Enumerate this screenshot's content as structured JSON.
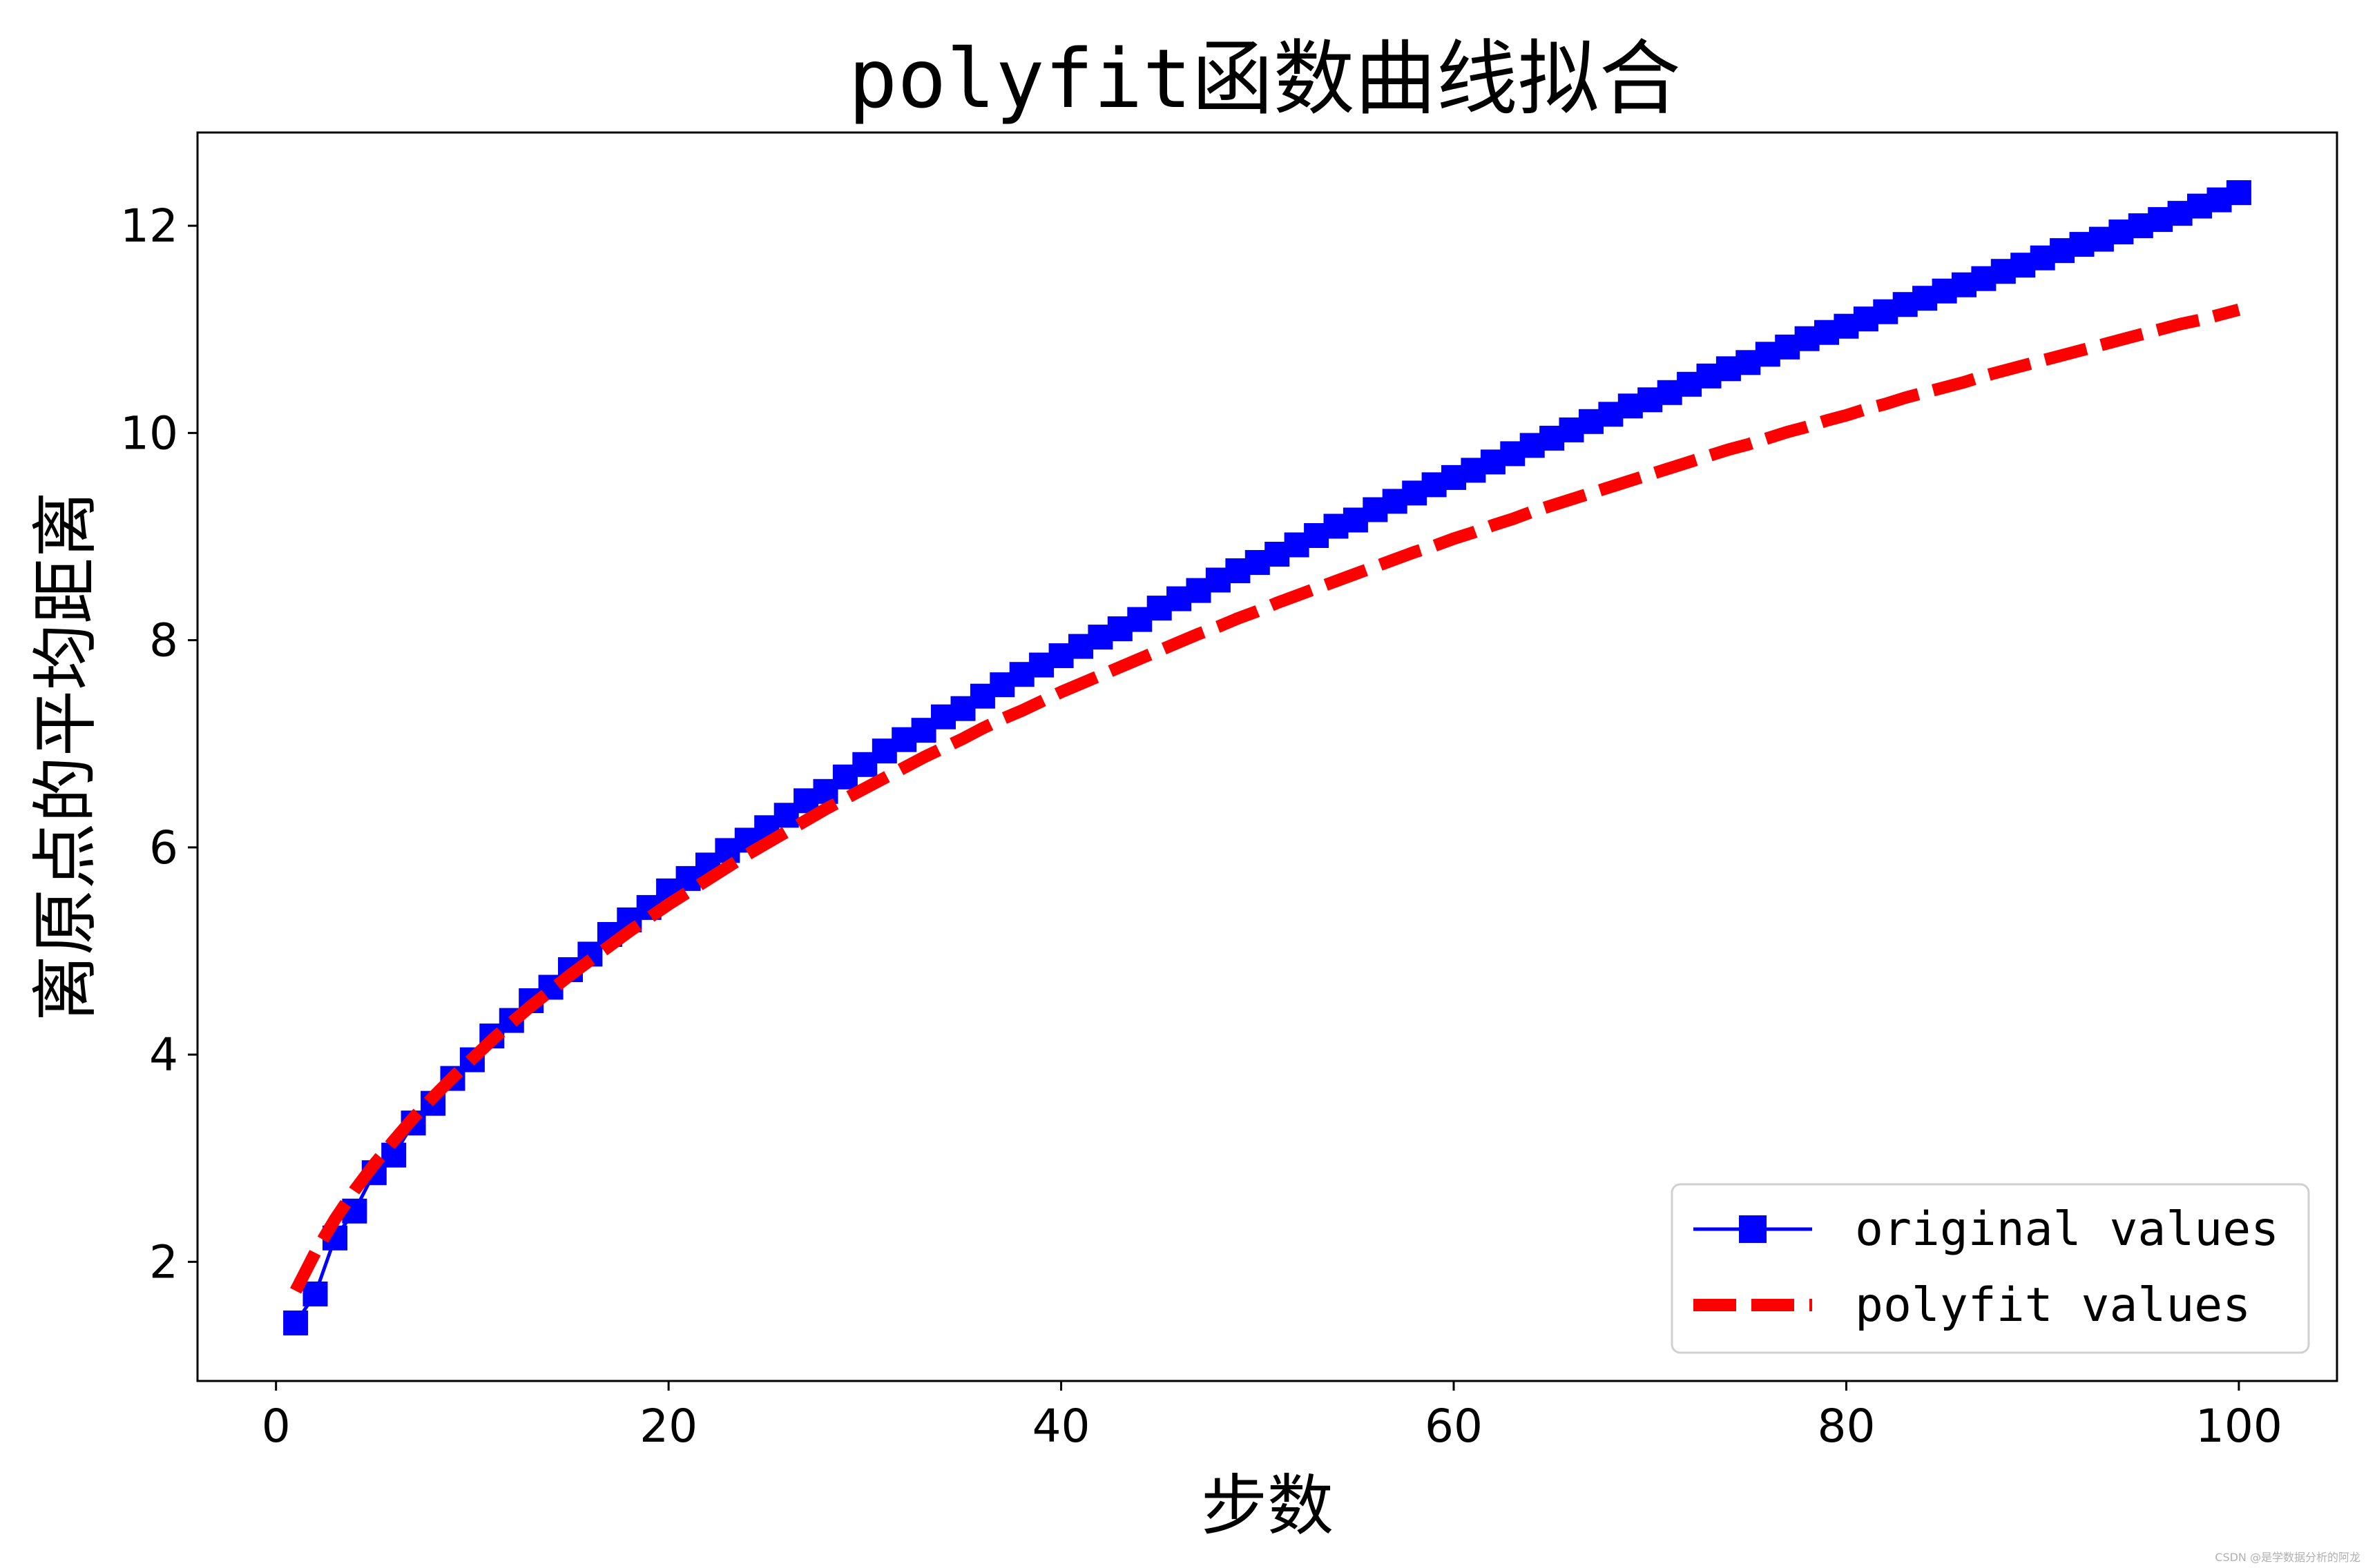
{
  "chart_data": {
    "type": "line",
    "title": "polyfit函数曲线拟合",
    "xlabel": "步数",
    "ylabel": "离原点的平均距离",
    "xlim": [
      -4,
      105
    ],
    "ylim": [
      0.85,
      12.9
    ],
    "xticks": [
      0,
      20,
      40,
      60,
      80,
      100
    ],
    "yticks": [
      2,
      4,
      6,
      8,
      10,
      12
    ],
    "grid": false,
    "legend_position": "lower-right",
    "x": [
      1,
      2,
      3,
      4,
      5,
      6,
      7,
      8,
      9,
      10,
      11,
      12,
      13,
      14,
      15,
      16,
      17,
      18,
      19,
      20,
      21,
      22,
      23,
      24,
      25,
      26,
      27,
      28,
      29,
      30,
      31,
      32,
      33,
      34,
      35,
      36,
      37,
      38,
      39,
      40,
      41,
      42,
      43,
      44,
      45,
      46,
      47,
      48,
      49,
      50,
      51,
      52,
      53,
      54,
      55,
      56,
      57,
      58,
      59,
      60,
      61,
      62,
      63,
      64,
      65,
      66,
      67,
      68,
      69,
      70,
      71,
      72,
      73,
      74,
      75,
      76,
      77,
      78,
      79,
      80,
      81,
      82,
      83,
      84,
      85,
      86,
      87,
      88,
      89,
      90,
      91,
      92,
      93,
      94,
      95,
      96,
      97,
      98,
      99,
      100
    ],
    "series": [
      {
        "name": "original values",
        "style": "solid line with square markers",
        "color": "#0000ff",
        "values": [
          1.41,
          1.69,
          2.23,
          2.49,
          2.86,
          3.03,
          3.34,
          3.53,
          3.77,
          3.95,
          4.18,
          4.33,
          4.52,
          4.65,
          4.82,
          4.97,
          5.16,
          5.3,
          5.42,
          5.58,
          5.7,
          5.83,
          5.97,
          6.07,
          6.19,
          6.31,
          6.45,
          6.54,
          6.68,
          6.8,
          6.93,
          7.04,
          7.13,
          7.26,
          7.34,
          7.46,
          7.57,
          7.67,
          7.76,
          7.85,
          7.94,
          8.03,
          8.11,
          8.2,
          8.31,
          8.4,
          8.48,
          8.58,
          8.67,
          8.75,
          8.83,
          8.92,
          9.01,
          9.1,
          9.16,
          9.26,
          9.34,
          9.42,
          9.5,
          9.57,
          9.64,
          9.72,
          9.8,
          9.88,
          9.95,
          10.03,
          10.11,
          10.18,
          10.26,
          10.32,
          10.39,
          10.47,
          10.55,
          10.62,
          10.68,
          10.76,
          10.83,
          10.91,
          10.97,
          11.03,
          11.1,
          11.17,
          11.24,
          11.3,
          11.37,
          11.43,
          11.49,
          11.56,
          11.62,
          11.69,
          11.76,
          11.82,
          11.87,
          11.94,
          12.0,
          12.06,
          12.12,
          12.19,
          12.25,
          12.32
        ]
      },
      {
        "name": "polyfit values",
        "style": "dashed line",
        "color": "#ff0000",
        "values": [
          1.72,
          2.09,
          2.41,
          2.69,
          2.94,
          3.17,
          3.39,
          3.59,
          3.78,
          3.96,
          4.14,
          4.31,
          4.47,
          4.62,
          4.77,
          4.91,
          5.05,
          5.19,
          5.32,
          5.45,
          5.57,
          5.69,
          5.81,
          5.93,
          6.04,
          6.15,
          6.26,
          6.37,
          6.47,
          6.57,
          6.67,
          6.77,
          6.87,
          6.96,
          7.05,
          7.15,
          7.24,
          7.32,
          7.41,
          7.5,
          7.58,
          7.66,
          7.74,
          7.82,
          7.9,
          7.98,
          8.06,
          8.13,
          8.21,
          8.28,
          8.36,
          8.43,
          8.5,
          8.57,
          8.64,
          8.71,
          8.78,
          8.85,
          8.91,
          8.98,
          9.04,
          9.11,
          9.17,
          9.24,
          9.3,
          9.36,
          9.42,
          9.48,
          9.54,
          9.6,
          9.66,
          9.72,
          9.78,
          9.84,
          9.89,
          9.95,
          10.01,
          10.06,
          10.12,
          10.17,
          10.23,
          10.28,
          10.34,
          10.39,
          10.44,
          10.49,
          10.55,
          10.6,
          10.65,
          10.7,
          10.75,
          10.8,
          10.85,
          10.9,
          10.95,
          11.0,
          11.05,
          11.09,
          11.14,
          11.19
        ]
      }
    ]
  },
  "watermark": "CSDN @是学数据分析的阿龙"
}
